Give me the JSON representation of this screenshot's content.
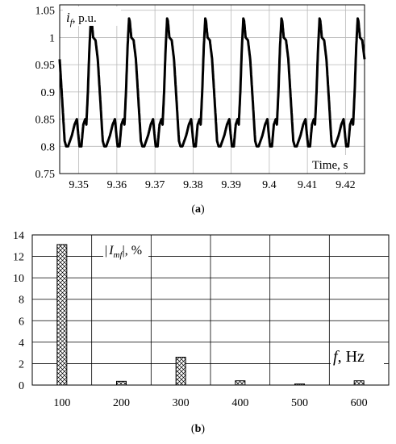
{
  "figure": {
    "caption_a_open": "(",
    "caption_a_letter": "a",
    "caption_a_close": ")",
    "caption_b_open": "(",
    "caption_b_letter": "b",
    "caption_b_close": ")"
  },
  "chart_data": [
    {
      "type": "line",
      "panel": "a",
      "ylabel_italic": "i",
      "ylabel_sub": "f",
      "ylabel_unit": ", p.u.",
      "xlabel": "Time, s",
      "xlim": [
        9.345,
        9.425
      ],
      "ylim": [
        0.75,
        1.06
      ],
      "x_ticks": [
        "9.35",
        "9.36",
        "9.37",
        "9.38",
        "9.39",
        "9.4",
        "9.41",
        "9.42"
      ],
      "x_tick_values": [
        9.35,
        9.36,
        9.37,
        9.38,
        9.39,
        9.4,
        9.41,
        9.42
      ],
      "y_ticks": [
        "0.75",
        "0.8",
        "0.85",
        "0.9",
        "0.95",
        "1",
        "1.05"
      ],
      "y_tick_values": [
        0.75,
        0.8,
        0.85,
        0.9,
        0.95,
        1.0,
        1.05
      ],
      "grid": true,
      "period": 0.01,
      "waveform_one_period": {
        "phase": [
          0.0,
          0.05,
          0.1,
          0.15,
          0.18,
          0.22,
          0.26,
          0.3,
          0.32,
          0.36,
          0.42,
          0.48,
          0.55,
          0.61,
          0.65,
          0.7,
          0.8,
          0.87,
          0.93,
          0.97,
          1.0
        ],
        "value": [
          0.8,
          0.8,
          0.84,
          0.85,
          0.84,
          0.9,
          0.98,
          1.035,
          1.03,
          1.0,
          0.995,
          0.96,
          0.88,
          0.81,
          0.8,
          0.8,
          0.82,
          0.84,
          0.85,
          0.82,
          0.8
        ]
      },
      "x": [
        9.345,
        9.3455,
        9.346,
        9.3465,
        9.3468,
        9.3472,
        9.3476,
        9.348,
        9.3482,
        9.3486,
        9.3492,
        9.3498,
        9.3505,
        9.3511,
        9.3515,
        9.352
      ],
      "y_sampled_note": ""
    },
    {
      "type": "bar",
      "panel": "b",
      "ylabel_pre": "|",
      "ylabel_italic": "I",
      "ylabel_sub": "mf",
      "ylabel_unit": "|, %",
      "xlabel_italic": "f",
      "xlabel_unit": ", Hz",
      "categories": [
        "100",
        "200",
        "300",
        "400",
        "500",
        "600"
      ],
      "values": [
        13.1,
        0.35,
        2.6,
        0.4,
        0.1,
        0.4
      ],
      "ylim": [
        0,
        14
      ],
      "y_ticks": [
        "0",
        "2",
        "4",
        "6",
        "8",
        "10",
        "12",
        "14"
      ],
      "y_tick_values": [
        0,
        2,
        4,
        6,
        8,
        10,
        12,
        14
      ],
      "grid": true,
      "bar_pattern": "crosshatch"
    }
  ]
}
